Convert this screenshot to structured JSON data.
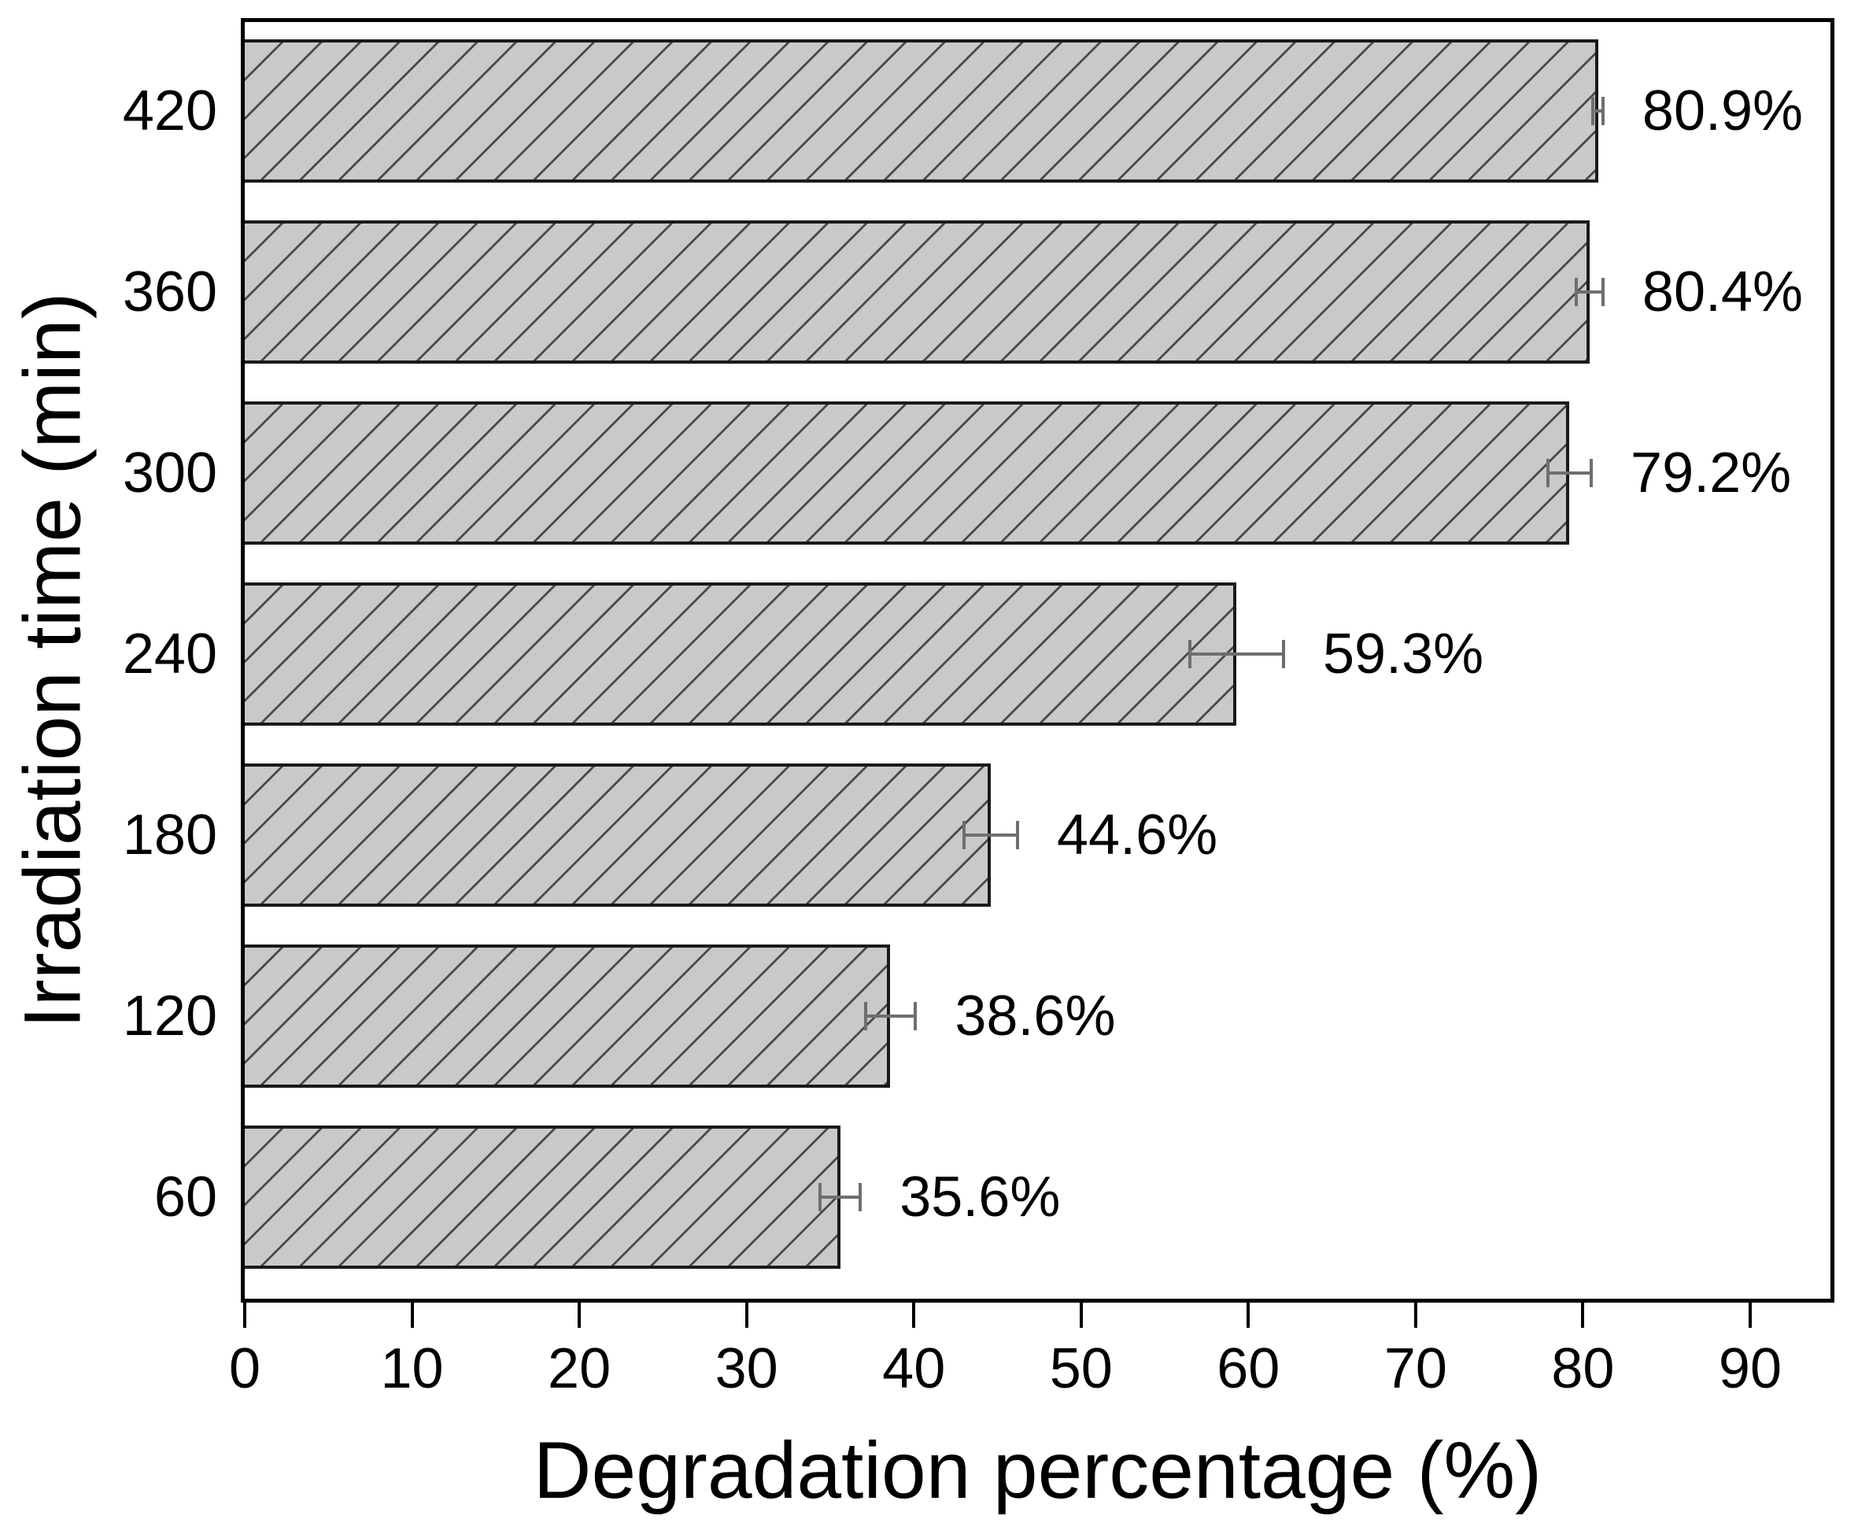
{
  "chart_data": {
    "type": "bar",
    "orientation": "horizontal",
    "title": "",
    "xlabel": "Degradation percentage (%)",
    "ylabel": "Irradiation time (min)",
    "categories": [
      "420",
      "360",
      "300",
      "240",
      "180",
      "120",
      "60"
    ],
    "values": [
      80.9,
      80.4,
      79.2,
      59.3,
      44.6,
      38.6,
      35.6
    ],
    "errors": [
      0.3,
      0.8,
      1.3,
      2.8,
      1.6,
      1.5,
      1.2
    ],
    "bar_labels": [
      "80.9%",
      "80.4%",
      "79.2%",
      "59.3%",
      "44.6%",
      "38.6%",
      "35.6%"
    ],
    "x_ticks": [
      0,
      10,
      20,
      30,
      40,
      50,
      60,
      70,
      80,
      90
    ],
    "xlim": [
      0,
      94.8
    ],
    "grid": false,
    "legend": null,
    "colors": {
      "bar_fill": "#c9c9c9",
      "hatch_line": "#4a4a4a",
      "bar_border": "#1a1a1a",
      "error_bar": "#6e6e6e",
      "axis": "#000000",
      "text": "#000000",
      "background": "#ffffff"
    }
  }
}
